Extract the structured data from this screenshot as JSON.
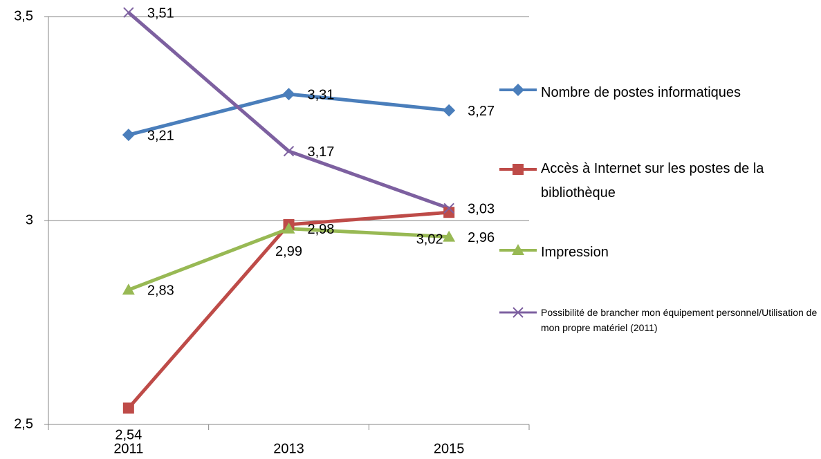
{
  "chart_data": {
    "type": "line",
    "categories": [
      "2011",
      "2013",
      "2015"
    ],
    "ylim": [
      2.5,
      3.5
    ],
    "yticks": [
      {
        "value": 2.5,
        "label": "2,5"
      },
      3,
      {
        "value": 3.5,
        "label": "3,5"
      }
    ],
    "grid": true,
    "legend": "right",
    "series": [
      {
        "name": "Nombre de postes informatiques",
        "color": "#4a7ebb",
        "marker": "diamond",
        "values": [
          3.21,
          3.31,
          3.27
        ],
        "value_labels": [
          "3,21",
          "3,31",
          "3,27"
        ]
      },
      {
        "name": "Accès à Internet sur les postes de la bibliothèque",
        "color": "#be4b48",
        "marker": "square",
        "values": [
          2.54,
          2.99,
          3.02
        ],
        "value_labels": [
          "2,54",
          "2,99",
          "3,02"
        ]
      },
      {
        "name": "Impression",
        "color": "#98b954",
        "marker": "triangle",
        "values": [
          2.83,
          2.98,
          2.96
        ],
        "value_labels": [
          "2,83",
          "2,98",
          "2,96"
        ]
      },
      {
        "name": "Possibilité de brancher mon équipement personnel/Utilisation de mon propre matériel (2011)",
        "color": "#7d60a0",
        "marker": "x",
        "values": [
          3.51,
          3.17,
          3.03
        ],
        "value_labels": [
          "3,51",
          "3,17",
          "3,03"
        ]
      }
    ]
  }
}
